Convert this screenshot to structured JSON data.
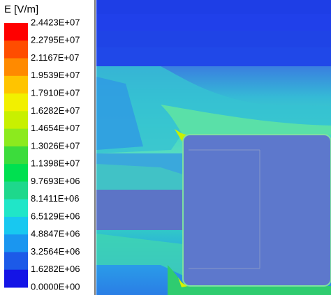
{
  "legend": {
    "title": "E [V/m]",
    "labels": [
      "2.4423E+07",
      "2.2795E+07",
      "2.1167E+07",
      "1.9539E+07",
      "1.7910E+07",
      "1.6282E+07",
      "1.4654E+07",
      "1.3026E+07",
      "1.1398E+07",
      "9.7693E+06",
      "8.1411E+06",
      "6.5129E+06",
      "4.8847E+06",
      "3.2564E+06",
      "1.6282E+06",
      "0.0000E+00"
    ],
    "colors": [
      "#ff0000",
      "#ff4d00",
      "#ff8a00",
      "#ffc400",
      "#f2f000",
      "#c8f000",
      "#8cea1e",
      "#3cdc3c",
      "#00e050",
      "#1ed88c",
      "#20e6c8",
      "#18c8f0",
      "#1a96f0",
      "#1c5ae8",
      "#1414e6"
    ]
  }
}
